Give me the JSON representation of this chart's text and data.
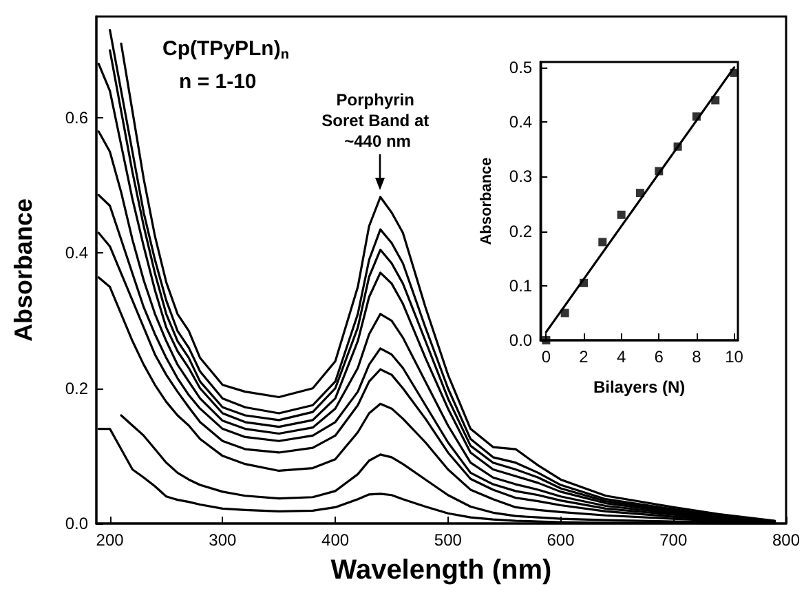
{
  "chart_data": [
    {
      "type": "line",
      "xlabel": "Wavelength (nm)",
      "ylabel": "Absorbance",
      "marker": "none",
      "annotations": [
        "Cp(TPyPLn)$_{n}$",
        "n = 1-10",
        {
          "text": "Porphyrin Soret Band at ~440 nm",
          "x": 440,
          "y": 0.483
        }
      ],
      "x": [
        190,
        200,
        210,
        220,
        230,
        240,
        250,
        260,
        270,
        280,
        300,
        320,
        350,
        380,
        400,
        420,
        430,
        440,
        450,
        460,
        480,
        500,
        520,
        540,
        560,
        580,
        600,
        640,
        700,
        740,
        790
      ],
      "xlim": [
        188,
        800
      ],
      "xticks": [
        200,
        300,
        400,
        500,
        600,
        700,
        800
      ],
      "ylim": [
        0,
        0.75
      ],
      "yticks": [
        {
          "value": 0,
          "label": "0.0"
        },
        {
          "value": 0.2,
          "label": "0.2"
        },
        {
          "value": 0.4,
          "label": "0.4"
        },
        {
          "value": 0.6,
          "label": "0.6"
        }
      ],
      "series": [
        {
          "color": "#000000",
          "values": [
            0.14,
            0.14,
            0.11,
            0.08,
            0.068,
            0.055,
            0.04,
            0.035,
            0.032,
            0.028,
            0.022,
            0.02,
            0.018,
            0.019,
            0.024,
            0.036,
            0.043,
            0.044,
            0.042,
            0.036,
            0.025,
            0.015,
            0.009,
            0.006,
            0.004,
            0.003,
            0.002,
            0.001,
            0.001,
            0,
            0
          ]
        },
        {
          "color": "#000000",
          "values": [
            null,
            null,
            0.16,
            0.145,
            0.13,
            0.11,
            0.09,
            0.075,
            0.065,
            0.057,
            0.047,
            0.041,
            0.037,
            0.039,
            0.048,
            0.073,
            0.093,
            0.102,
            0.098,
            0.088,
            0.065,
            0.042,
            0.025,
            0.016,
            0.011,
            0.009,
            0.007,
            0.005,
            0.003,
            0.002,
            0.001
          ]
        },
        {
          "color": "#000000",
          "values": [
            0.364,
            0.35,
            0.31,
            0.27,
            0.235,
            0.205,
            0.18,
            0.16,
            0.145,
            0.125,
            0.1,
            0.088,
            0.078,
            0.082,
            0.095,
            0.135,
            0.163,
            0.177,
            0.17,
            0.155,
            0.12,
            0.08,
            0.05,
            0.036,
            0.024,
            0.02,
            0.017,
            0.012,
            0.007,
            0.004,
            0.001
          ]
        },
        {
          "color": "#000000",
          "values": [
            0.43,
            0.41,
            0.37,
            0.33,
            0.29,
            0.25,
            0.22,
            0.195,
            0.172,
            0.15,
            0.122,
            0.11,
            0.105,
            0.112,
            0.13,
            0.175,
            0.21,
            0.228,
            0.22,
            0.2,
            0.155,
            0.105,
            0.066,
            0.05,
            0.038,
            0.033,
            0.027,
            0.018,
            0.01,
            0.006,
            0.002
          ]
        },
        {
          "color": "#000000",
          "values": [
            0.486,
            0.47,
            0.42,
            0.37,
            0.32,
            0.28,
            0.245,
            0.215,
            0.19,
            0.17,
            0.14,
            0.128,
            0.122,
            0.13,
            0.15,
            0.195,
            0.235,
            0.259,
            0.25,
            0.23,
            0.175,
            0.12,
            0.075,
            0.058,
            0.048,
            0.042,
            0.034,
            0.022,
            0.013,
            0.007,
            0.002
          ]
        },
        {
          "color": "#000000",
          "values": [
            0.58,
            0.55,
            0.49,
            0.42,
            0.36,
            0.31,
            0.27,
            0.235,
            0.21,
            0.185,
            0.152,
            0.14,
            0.133,
            0.142,
            0.17,
            0.23,
            0.28,
            0.31,
            0.3,
            0.275,
            0.21,
            0.145,
            0.09,
            0.068,
            0.058,
            0.05,
            0.04,
            0.026,
            0.015,
            0.009,
            0.002
          ]
        },
        {
          "color": "#000000",
          "values": [
            0.68,
            0.64,
            0.56,
            0.48,
            0.41,
            0.345,
            0.29,
            0.255,
            0.23,
            0.2,
            0.163,
            0.15,
            0.143,
            0.153,
            0.185,
            0.27,
            0.335,
            0.371,
            0.355,
            0.325,
            0.245,
            0.17,
            0.105,
            0.08,
            0.07,
            0.06,
            0.047,
            0.03,
            0.017,
            0.01,
            0.003
          ]
        },
        {
          "color": "#000000",
          "values": [
            null,
            0.7,
            0.61,
            0.52,
            0.44,
            0.37,
            0.31,
            0.27,
            0.245,
            0.21,
            0.172,
            0.16,
            0.153,
            0.165,
            0.2,
            0.29,
            0.365,
            0.405,
            0.385,
            0.355,
            0.27,
            0.185,
            0.115,
            0.09,
            0.08,
            0.068,
            0.052,
            0.033,
            0.019,
            0.011,
            0.003
          ]
        },
        {
          "color": "#000000",
          "values": [
            null,
            0.73,
            0.64,
            0.55,
            0.46,
            0.39,
            0.33,
            0.285,
            0.26,
            0.225,
            0.185,
            0.172,
            0.163,
            0.175,
            0.21,
            0.31,
            0.39,
            0.435,
            0.415,
            0.385,
            0.29,
            0.2,
            0.125,
            0.098,
            0.09,
            0.075,
            0.057,
            0.036,
            0.021,
            0.012,
            0.003
          ]
        },
        {
          "color": "#000000",
          "values": [
            null,
            null,
            0.71,
            0.61,
            0.51,
            0.425,
            0.357,
            0.31,
            0.285,
            0.245,
            0.205,
            0.195,
            0.187,
            0.2,
            0.24,
            0.35,
            0.44,
            0.483,
            0.46,
            0.43,
            0.32,
            0.22,
            0.14,
            0.113,
            0.11,
            0.086,
            0.065,
            0.041,
            0.024,
            0.014,
            0.004
          ]
        }
      ]
    },
    {
      "type": "scatter",
      "xlabel": "Bilayers (N)",
      "ylabel": "Absorbance",
      "x": [
        0,
        1,
        2,
        3,
        4,
        5,
        6,
        7,
        8,
        9,
        10
      ],
      "xlim": [
        -0.3,
        10.2
      ],
      "xticks": [
        0,
        2,
        4,
        6,
        8,
        10
      ],
      "ylim": [
        0,
        0.51
      ],
      "yticks": [
        {
          "value": 0,
          "label": "0.0"
        },
        {
          "value": 0.1,
          "label": "0.1"
        },
        {
          "value": 0.2,
          "label": "0.2"
        },
        {
          "value": 0.3,
          "label": "0.3"
        },
        {
          "value": 0.4,
          "label": "0.4"
        },
        {
          "value": 0.5,
          "label": "0.5"
        }
      ],
      "series": [
        {
          "marker": "square",
          "color": "#000000",
          "values": [
            0.0,
            0.05,
            0.105,
            0.18,
            0.23,
            0.27,
            0.31,
            0.355,
            0.41,
            0.44,
            0.49
          ]
        },
        {
          "type": "line",
          "marker": "none",
          "color": "#000000",
          "x": [
            0,
            10
          ],
          "values": [
            0.015,
            0.5
          ]
        }
      ]
    }
  ]
}
